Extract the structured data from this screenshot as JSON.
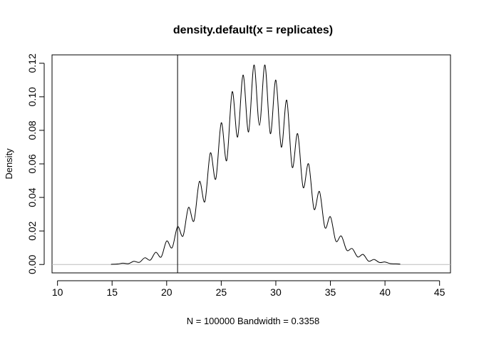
{
  "chart_data": {
    "type": "line",
    "title": "density.default(x = replicates)",
    "xlabel": "N = 100000   Bandwidth = 0.3358",
    "ylabel": "Density",
    "xlim": [
      9.5,
      46
    ],
    "ylim": [
      -0.005,
      0.125
    ],
    "x_ticks": [
      10,
      15,
      20,
      25,
      30,
      35,
      40,
      45
    ],
    "y_ticks": [
      0.0,
      0.02,
      0.04,
      0.06,
      0.08,
      0.1,
      0.12
    ],
    "x_tick_labels": [
      "10",
      "15",
      "20",
      "25",
      "30",
      "35",
      "40",
      "45"
    ],
    "y_tick_labels": [
      "0.00",
      "0.02",
      "0.04",
      "0.06",
      "0.08",
      "0.10",
      "0.12"
    ],
    "baseline": 0,
    "vline": 21,
    "grid": false,
    "colors": {
      "line": "#000000",
      "baseline": "#bebebe",
      "vline": "#000000",
      "axis": "#000000"
    },
    "series": [
      {
        "x": [
          14.9,
          15.5,
          16.0,
          16.5,
          17.0,
          17.5,
          18.0,
          18.5,
          19.0,
          19.5,
          20.0,
          20.5,
          21.0,
          21.5,
          22.0,
          22.5,
          23.0,
          23.5,
          24.0,
          24.5,
          25.0,
          25.5,
          26.0,
          26.5,
          27.0,
          27.5,
          28.0,
          28.5,
          29.0,
          29.5,
          30.0,
          30.5,
          31.0,
          31.5,
          32.0,
          32.5,
          33.0,
          33.5,
          34.0,
          34.5,
          35.0,
          35.5,
          36.0,
          36.5,
          37.0,
          37.5,
          38.0,
          38.5,
          39.0,
          39.5,
          40.0,
          40.5,
          41.0,
          41.4
        ],
        "y": [
          0.0001,
          0.0003,
          0.0008,
          0.0005,
          0.0019,
          0.0013,
          0.004,
          0.0026,
          0.0073,
          0.0045,
          0.014,
          0.01,
          0.0225,
          0.017,
          0.034,
          0.026,
          0.0495,
          0.0375,
          0.0665,
          0.051,
          0.0845,
          0.062,
          0.103,
          0.076,
          0.113,
          0.079,
          0.119,
          0.083,
          0.119,
          0.078,
          0.11,
          0.07,
          0.098,
          0.058,
          0.078,
          0.046,
          0.06,
          0.033,
          0.0435,
          0.022,
          0.0285,
          0.014,
          0.017,
          0.0085,
          0.0095,
          0.0045,
          0.006,
          0.002,
          0.003,
          0.0012,
          0.0015,
          0.0005,
          0.0004,
          0.0002
        ]
      }
    ]
  }
}
